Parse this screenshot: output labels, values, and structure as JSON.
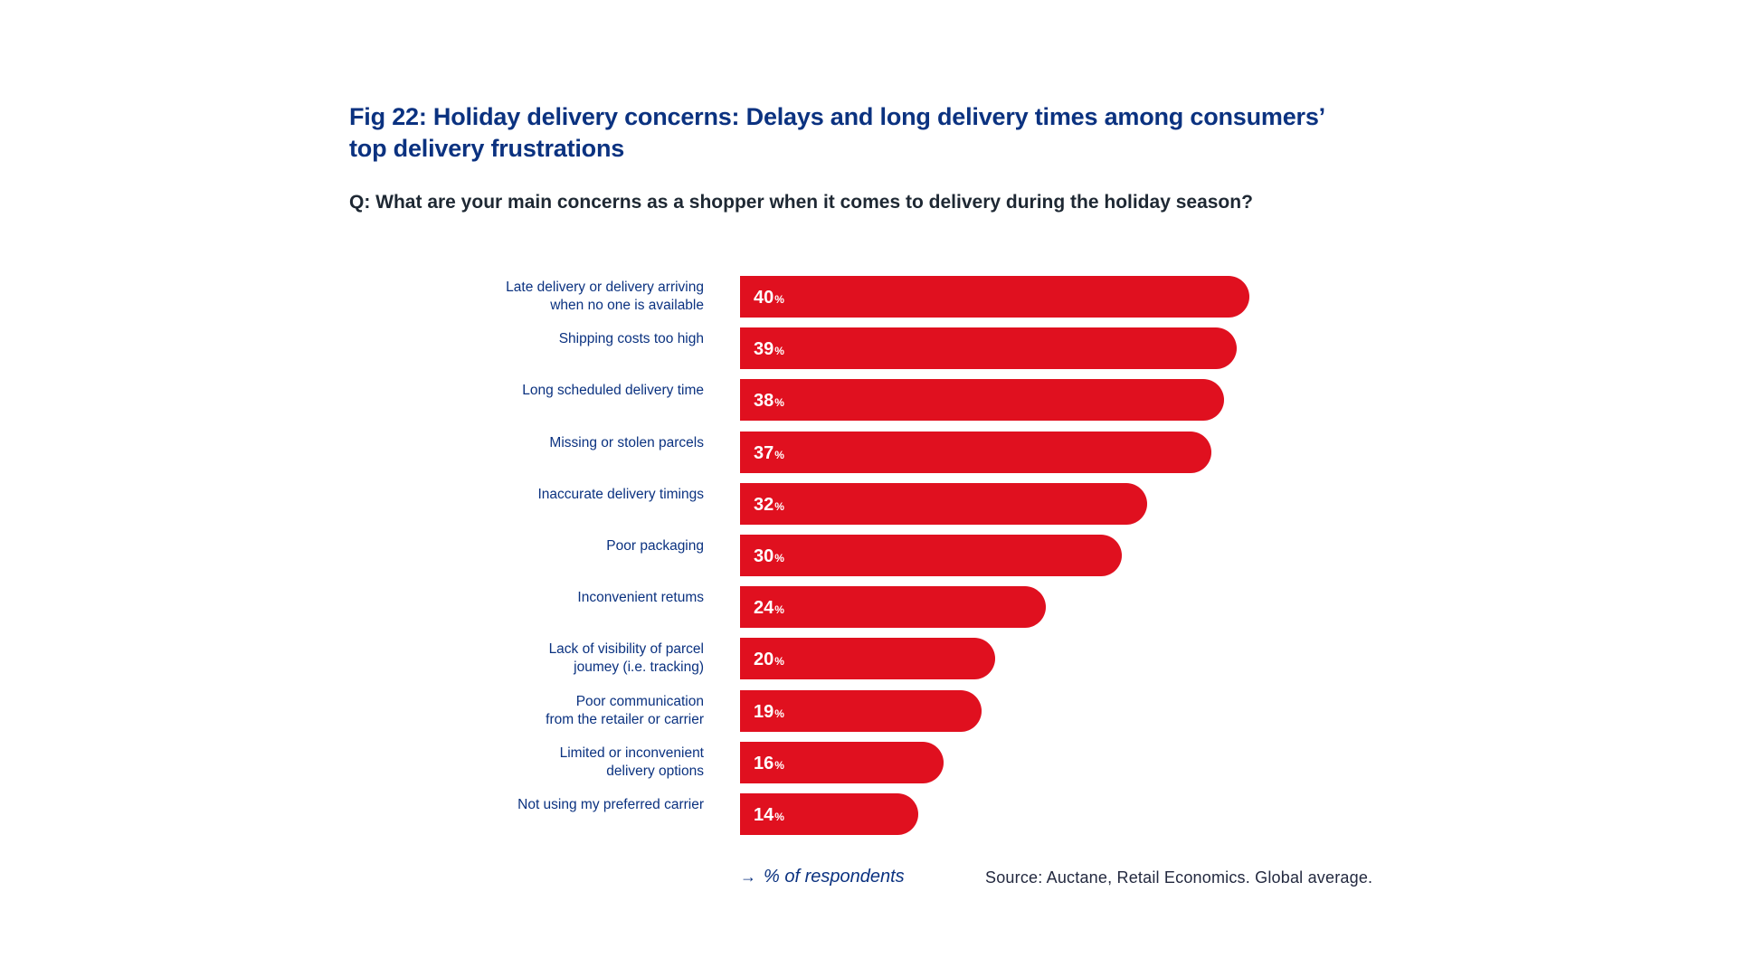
{
  "chart_data": {
    "type": "bar",
    "orientation": "horizontal",
    "title": "Fig 22: Holiday delivery concerns: Delays and long delivery times among consumers’ top delivery frustrations",
    "subtitle": "Q: What are your main concerns as a shopper when it comes to delivery during the holiday season?",
    "categories": [
      [
        "Late delivery or delivery arriving",
        "when no one is available"
      ],
      [
        "Shipping costs too high"
      ],
      [
        "Long scheduled delivery time"
      ],
      [
        "Missing or stolen parcels"
      ],
      [
        "Inaccurate delivery timings"
      ],
      [
        "Poor packaging"
      ],
      [
        "Inconvenient retums"
      ],
      [
        "Lack of visibility of parcel",
        "joumey (i.e. tracking)"
      ],
      [
        "Poor communication",
        "from the retailer or carrier"
      ],
      [
        "Limited or inconvenient",
        "delivery options"
      ],
      [
        "Not using my preferred carrier"
      ]
    ],
    "values": [
      40,
      39,
      38,
      37,
      32,
      30,
      24,
      20,
      19,
      16,
      14
    ],
    "value_suffix": "%",
    "xlabel": "% of respondents",
    "xlabel_icon": "arrow-right-icon",
    "ylabel": "",
    "xlim": [
      0,
      40
    ],
    "grid": false,
    "legend": "none",
    "source": "Source: Auctane, Retail Economics. Global average.",
    "colors": {
      "bar": "#E0101F",
      "title": "#0B3280",
      "labels": "#0B3280",
      "subtitle": "#1E2833",
      "value_text": "#FFFFFF"
    }
  }
}
